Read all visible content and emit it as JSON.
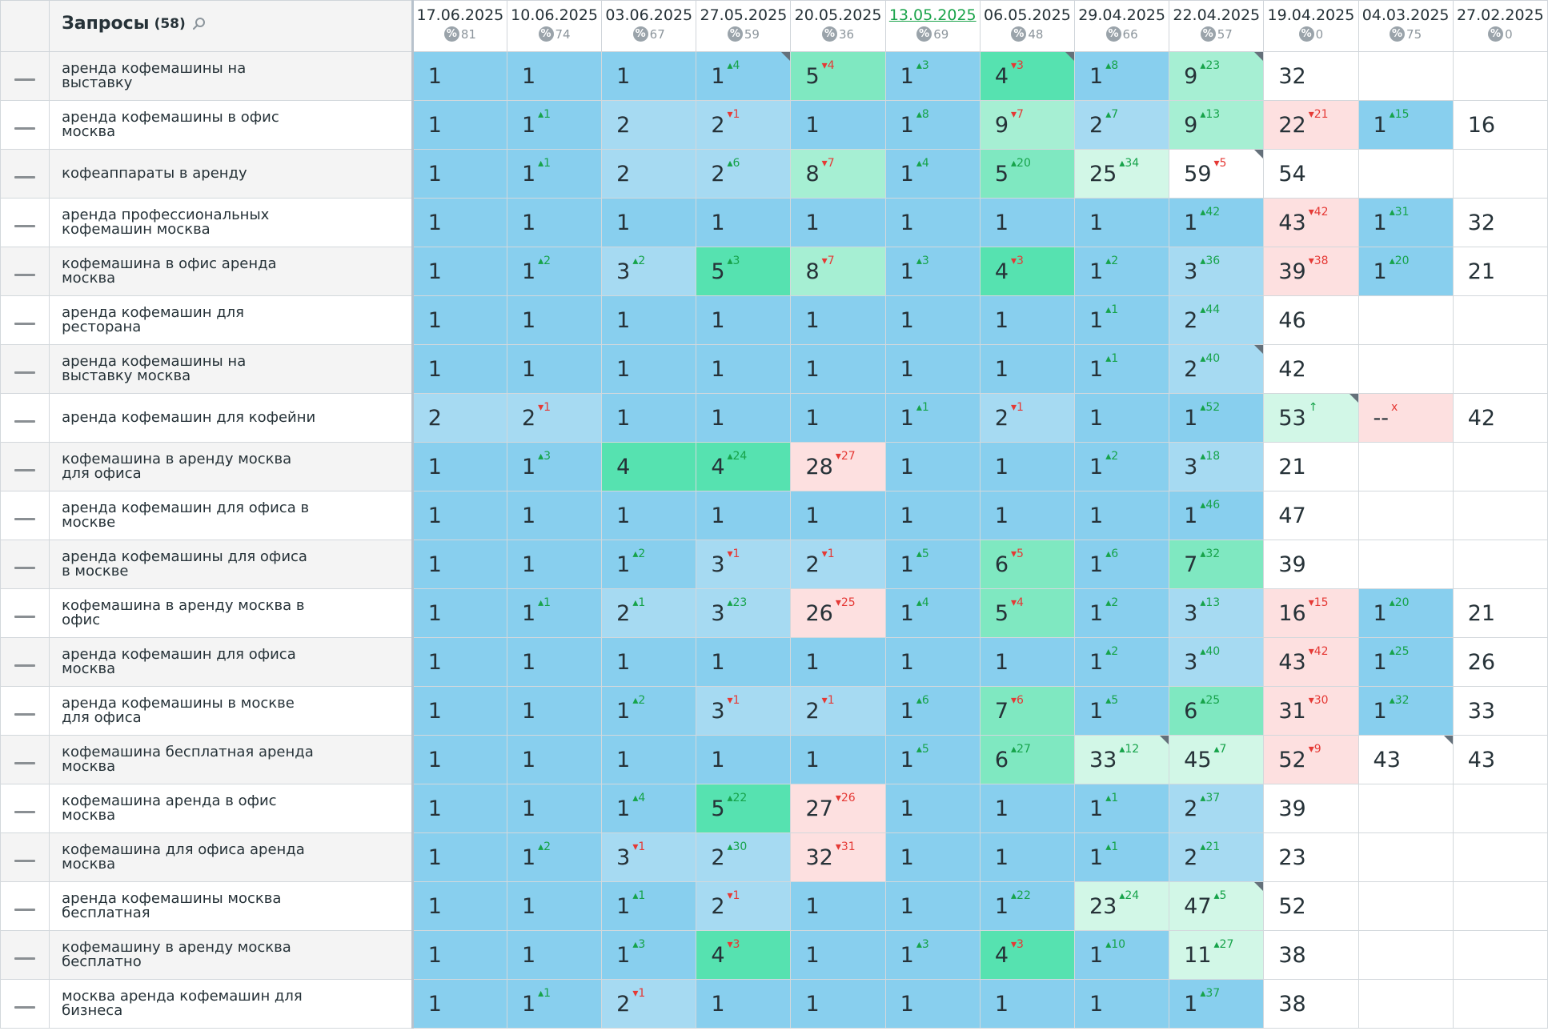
{
  "header": {
    "title": "Запросы",
    "count": "(58)",
    "pct_icon": "%",
    "dates": [
      {
        "date": "17.06.2025",
        "pct": "81"
      },
      {
        "date": "10.06.2025",
        "pct": "74"
      },
      {
        "date": "03.06.2025",
        "pct": "67"
      },
      {
        "date": "27.05.2025",
        "pct": "59"
      },
      {
        "date": "20.05.2025",
        "pct": "36"
      },
      {
        "date": "13.05.2025",
        "pct": "69",
        "link": true
      },
      {
        "date": "06.05.2025",
        "pct": "48"
      },
      {
        "date": "29.04.2025",
        "pct": "66"
      },
      {
        "date": "22.04.2025",
        "pct": "57"
      },
      {
        "date": "19.04.2025",
        "pct": "0"
      },
      {
        "date": "04.03.2025",
        "pct": "75"
      },
      {
        "date": "27.02.2025",
        "pct": "0"
      }
    ]
  },
  "colors": {
    "top1": "#88cfee",
    "top2": "#a6daf2",
    "top3": "#56e2b0",
    "top5": "#7fe8c1",
    "top10": "#a6efd3",
    "top30": "#d2f7e7",
    "bad": "#fde0e0",
    "up": "#16a34a",
    "down": "#e53935",
    "link": "#1aa34a"
  },
  "rows": [
    {
      "q": "аренда кофемашины на выставку",
      "cells": [
        {
          "r": "1"
        },
        {
          "r": "1"
        },
        {
          "r": "1"
        },
        {
          "r": "1",
          "c": "4",
          "d": "up",
          "corner": true
        },
        {
          "r": "5",
          "c": "4",
          "d": "down",
          "bg": "top5"
        },
        {
          "r": "1",
          "c": "3",
          "d": "up"
        },
        {
          "r": "4",
          "c": "3",
          "d": "down",
          "bg": "top3",
          "corner": true
        },
        {
          "r": "1",
          "c": "8",
          "d": "up"
        },
        {
          "r": "9",
          "c": "23",
          "d": "up",
          "bg": "top10",
          "corner": true
        },
        {
          "r": "32",
          "bg": "low"
        },
        {},
        {}
      ]
    },
    {
      "q": "аренда кофемашины в офис москва",
      "cells": [
        {
          "r": "1"
        },
        {
          "r": "1",
          "c": "1",
          "d": "up"
        },
        {
          "r": "2",
          "bg": "top2"
        },
        {
          "r": "2",
          "c": "1",
          "d": "down",
          "bg": "top2"
        },
        {
          "r": "1"
        },
        {
          "r": "1",
          "c": "8",
          "d": "up"
        },
        {
          "r": "9",
          "c": "7",
          "d": "down",
          "bg": "top10"
        },
        {
          "r": "2",
          "c": "7",
          "d": "up",
          "bg": "top2"
        },
        {
          "r": "9",
          "c": "13",
          "d": "up",
          "bg": "top10"
        },
        {
          "r": "22",
          "c": "21",
          "d": "down",
          "bg": "bad"
        },
        {
          "r": "1",
          "c": "15",
          "d": "up"
        },
        {
          "r": "16",
          "bg": "low"
        }
      ]
    },
    {
      "q": "кофеаппараты в аренду",
      "cells": [
        {
          "r": "1"
        },
        {
          "r": "1",
          "c": "1",
          "d": "up"
        },
        {
          "r": "2",
          "bg": "top2"
        },
        {
          "r": "2",
          "c": "6",
          "d": "up",
          "bg": "top2"
        },
        {
          "r": "8",
          "c": "7",
          "d": "down",
          "bg": "top10"
        },
        {
          "r": "1",
          "c": "4",
          "d": "up"
        },
        {
          "r": "5",
          "c": "20",
          "d": "up",
          "bg": "top5"
        },
        {
          "r": "25",
          "c": "34",
          "d": "up",
          "bg": "top30"
        },
        {
          "r": "59",
          "c": "5",
          "d": "down",
          "bg": "low",
          "corner": true
        },
        {
          "r": "54",
          "bg": "low"
        },
        {},
        {}
      ]
    },
    {
      "q": "аренда профессиональных кофемашин москва",
      "cells": [
        {
          "r": "1"
        },
        {
          "r": "1"
        },
        {
          "r": "1"
        },
        {
          "r": "1"
        },
        {
          "r": "1"
        },
        {
          "r": "1"
        },
        {
          "r": "1"
        },
        {
          "r": "1"
        },
        {
          "r": "1",
          "c": "42",
          "d": "up"
        },
        {
          "r": "43",
          "c": "42",
          "d": "down",
          "bg": "bad"
        },
        {
          "r": "1",
          "c": "31",
          "d": "up"
        },
        {
          "r": "32",
          "bg": "low"
        }
      ]
    },
    {
      "q": "кофемашина в офис аренда москва",
      "cells": [
        {
          "r": "1"
        },
        {
          "r": "1",
          "c": "2",
          "d": "up"
        },
        {
          "r": "3",
          "c": "2",
          "d": "up",
          "bg": "top2"
        },
        {
          "r": "5",
          "c": "3",
          "d": "up",
          "bg": "top3"
        },
        {
          "r": "8",
          "c": "7",
          "d": "down",
          "bg": "top10"
        },
        {
          "r": "1",
          "c": "3",
          "d": "up"
        },
        {
          "r": "4",
          "c": "3",
          "d": "down",
          "bg": "top3"
        },
        {
          "r": "1",
          "c": "2",
          "d": "up"
        },
        {
          "r": "3",
          "c": "36",
          "d": "up",
          "bg": "top2"
        },
        {
          "r": "39",
          "c": "38",
          "d": "down",
          "bg": "bad"
        },
        {
          "r": "1",
          "c": "20",
          "d": "up"
        },
        {
          "r": "21",
          "bg": "low"
        }
      ]
    },
    {
      "q": "аренда кофемашин для ресторана",
      "cells": [
        {
          "r": "1"
        },
        {
          "r": "1"
        },
        {
          "r": "1"
        },
        {
          "r": "1"
        },
        {
          "r": "1"
        },
        {
          "r": "1"
        },
        {
          "r": "1"
        },
        {
          "r": "1",
          "c": "1",
          "d": "up"
        },
        {
          "r": "2",
          "c": "44",
          "d": "up",
          "bg": "top2"
        },
        {
          "r": "46",
          "bg": "low"
        },
        {},
        {}
      ]
    },
    {
      "q": "аренда кофемашины на выставку москва",
      "cells": [
        {
          "r": "1"
        },
        {
          "r": "1"
        },
        {
          "r": "1"
        },
        {
          "r": "1"
        },
        {
          "r": "1"
        },
        {
          "r": "1"
        },
        {
          "r": "1"
        },
        {
          "r": "1",
          "c": "1",
          "d": "up"
        },
        {
          "r": "2",
          "c": "40",
          "d": "up",
          "bg": "top2",
          "corner": true
        },
        {
          "r": "42",
          "bg": "low"
        },
        {},
        {}
      ]
    },
    {
      "q": "аренда кофемашин для кофейни",
      "cells": [
        {
          "r": "2",
          "bg": "top2"
        },
        {
          "r": "2",
          "c": "1",
          "d": "down",
          "bg": "top2"
        },
        {
          "r": "1"
        },
        {
          "r": "1"
        },
        {
          "r": "1"
        },
        {
          "r": "1",
          "c": "1",
          "d": "up"
        },
        {
          "r": "2",
          "c": "1",
          "d": "down",
          "bg": "top2"
        },
        {
          "r": "1"
        },
        {
          "r": "1",
          "c": "52",
          "d": "up"
        },
        {
          "r": "53",
          "c": "↑",
          "d": "up",
          "bg": "top30",
          "corner": true
        },
        {
          "r": "--",
          "c": "x",
          "d": "neu",
          "bg": "bad"
        },
        {
          "r": "42",
          "bg": "low"
        }
      ]
    },
    {
      "q": "кофемашина в аренду москва для офиса",
      "cells": [
        {
          "r": "1"
        },
        {
          "r": "1",
          "c": "3",
          "d": "up"
        },
        {
          "r": "4",
          "bg": "top3"
        },
        {
          "r": "4",
          "c": "24",
          "d": "up",
          "bg": "top3"
        },
        {
          "r": "28",
          "c": "27",
          "d": "down",
          "bg": "bad"
        },
        {
          "r": "1"
        },
        {
          "r": "1"
        },
        {
          "r": "1",
          "c": "2",
          "d": "up"
        },
        {
          "r": "3",
          "c": "18",
          "d": "up",
          "bg": "top2"
        },
        {
          "r": "21",
          "bg": "low"
        },
        {},
        {}
      ]
    },
    {
      "q": "аренда кофемашин для офиса в москве",
      "cells": [
        {
          "r": "1"
        },
        {
          "r": "1"
        },
        {
          "r": "1"
        },
        {
          "r": "1"
        },
        {
          "r": "1"
        },
        {
          "r": "1"
        },
        {
          "r": "1"
        },
        {
          "r": "1"
        },
        {
          "r": "1",
          "c": "46",
          "d": "up"
        },
        {
          "r": "47",
          "bg": "low"
        },
        {},
        {}
      ]
    },
    {
      "q": "аренда кофемашины для офиса в москве",
      "cells": [
        {
          "r": "1"
        },
        {
          "r": "1"
        },
        {
          "r": "1",
          "c": "2",
          "d": "up"
        },
        {
          "r": "3",
          "c": "1",
          "d": "down",
          "bg": "top2"
        },
        {
          "r": "2",
          "c": "1",
          "d": "down",
          "bg": "top2"
        },
        {
          "r": "1",
          "c": "5",
          "d": "up"
        },
        {
          "r": "6",
          "c": "5",
          "d": "down",
          "bg": "top5"
        },
        {
          "r": "1",
          "c": "6",
          "d": "up"
        },
        {
          "r": "7",
          "c": "32",
          "d": "up",
          "bg": "top5"
        },
        {
          "r": "39",
          "bg": "low"
        },
        {},
        {}
      ]
    },
    {
      "q": "кофемашина в аренду москва в офис",
      "cells": [
        {
          "r": "1"
        },
        {
          "r": "1",
          "c": "1",
          "d": "up"
        },
        {
          "r": "2",
          "c": "1",
          "d": "up",
          "bg": "top2"
        },
        {
          "r": "3",
          "c": "23",
          "d": "up",
          "bg": "top2"
        },
        {
          "r": "26",
          "c": "25",
          "d": "down",
          "bg": "bad"
        },
        {
          "r": "1",
          "c": "4",
          "d": "up"
        },
        {
          "r": "5",
          "c": "4",
          "d": "down",
          "bg": "top5"
        },
        {
          "r": "1",
          "c": "2",
          "d": "up"
        },
        {
          "r": "3",
          "c": "13",
          "d": "up",
          "bg": "top2"
        },
        {
          "r": "16",
          "c": "15",
          "d": "down",
          "bg": "bad"
        },
        {
          "r": "1",
          "c": "20",
          "d": "up"
        },
        {
          "r": "21",
          "bg": "low"
        }
      ]
    },
    {
      "q": "аренда кофемашин для офиса москва",
      "cells": [
        {
          "r": "1"
        },
        {
          "r": "1"
        },
        {
          "r": "1"
        },
        {
          "r": "1"
        },
        {
          "r": "1"
        },
        {
          "r": "1"
        },
        {
          "r": "1"
        },
        {
          "r": "1",
          "c": "2",
          "d": "up"
        },
        {
          "r": "3",
          "c": "40",
          "d": "up",
          "bg": "top2"
        },
        {
          "r": "43",
          "c": "42",
          "d": "down",
          "bg": "bad"
        },
        {
          "r": "1",
          "c": "25",
          "d": "up"
        },
        {
          "r": "26",
          "bg": "low"
        }
      ]
    },
    {
      "q": "аренда кофемашины в москве для офиса",
      "cells": [
        {
          "r": "1"
        },
        {
          "r": "1"
        },
        {
          "r": "1",
          "c": "2",
          "d": "up"
        },
        {
          "r": "3",
          "c": "1",
          "d": "down",
          "bg": "top2"
        },
        {
          "r": "2",
          "c": "1",
          "d": "down",
          "bg": "top2"
        },
        {
          "r": "1",
          "c": "6",
          "d": "up"
        },
        {
          "r": "7",
          "c": "6",
          "d": "down",
          "bg": "top5"
        },
        {
          "r": "1",
          "c": "5",
          "d": "up"
        },
        {
          "r": "6",
          "c": "25",
          "d": "up",
          "bg": "top5"
        },
        {
          "r": "31",
          "c": "30",
          "d": "down",
          "bg": "bad"
        },
        {
          "r": "1",
          "c": "32",
          "d": "up"
        },
        {
          "r": "33",
          "bg": "low"
        }
      ]
    },
    {
      "q": "кофемашина бесплатная аренда москва",
      "cells": [
        {
          "r": "1"
        },
        {
          "r": "1"
        },
        {
          "r": "1"
        },
        {
          "r": "1"
        },
        {
          "r": "1"
        },
        {
          "r": "1",
          "c": "5",
          "d": "up"
        },
        {
          "r": "6",
          "c": "27",
          "d": "up",
          "bg": "top5"
        },
        {
          "r": "33",
          "c": "12",
          "d": "up",
          "bg": "top30",
          "corner": true
        },
        {
          "r": "45",
          "c": "7",
          "d": "up",
          "bg": "top30"
        },
        {
          "r": "52",
          "c": "9",
          "d": "down",
          "bg": "bad"
        },
        {
          "r": "43",
          "bg": "low",
          "corner": true
        },
        {
          "r": "43",
          "bg": "low"
        }
      ]
    },
    {
      "q": "кофемашина аренда в офис москва",
      "cells": [
        {
          "r": "1"
        },
        {
          "r": "1"
        },
        {
          "r": "1",
          "c": "4",
          "d": "up"
        },
        {
          "r": "5",
          "c": "22",
          "d": "up",
          "bg": "top3"
        },
        {
          "r": "27",
          "c": "26",
          "d": "down",
          "bg": "bad"
        },
        {
          "r": "1"
        },
        {
          "r": "1"
        },
        {
          "r": "1",
          "c": "1",
          "d": "up"
        },
        {
          "r": "2",
          "c": "37",
          "d": "up",
          "bg": "top2"
        },
        {
          "r": "39",
          "bg": "low"
        },
        {},
        {}
      ]
    },
    {
      "q": "кофемашина для офиса аренда москва",
      "cells": [
        {
          "r": "1"
        },
        {
          "r": "1",
          "c": "2",
          "d": "up"
        },
        {
          "r": "3",
          "c": "1",
          "d": "down",
          "bg": "top2"
        },
        {
          "r": "2",
          "c": "30",
          "d": "up",
          "bg": "top2"
        },
        {
          "r": "32",
          "c": "31",
          "d": "down",
          "bg": "bad"
        },
        {
          "r": "1"
        },
        {
          "r": "1"
        },
        {
          "r": "1",
          "c": "1",
          "d": "up"
        },
        {
          "r": "2",
          "c": "21",
          "d": "up",
          "bg": "top2"
        },
        {
          "r": "23",
          "bg": "low"
        },
        {},
        {}
      ]
    },
    {
      "q": "аренда кофемашины москва бесплатная",
      "cells": [
        {
          "r": "1"
        },
        {
          "r": "1"
        },
        {
          "r": "1",
          "c": "1",
          "d": "up"
        },
        {
          "r": "2",
          "c": "1",
          "d": "down",
          "bg": "top2"
        },
        {
          "r": "1"
        },
        {
          "r": "1"
        },
        {
          "r": "1",
          "c": "22",
          "d": "up"
        },
        {
          "r": "23",
          "c": "24",
          "d": "up",
          "bg": "top30"
        },
        {
          "r": "47",
          "c": "5",
          "d": "up",
          "bg": "top30",
          "corner": true
        },
        {
          "r": "52",
          "bg": "low"
        },
        {},
        {}
      ]
    },
    {
      "q": "кофемашину в аренду москва бесплатно",
      "cells": [
        {
          "r": "1"
        },
        {
          "r": "1"
        },
        {
          "r": "1",
          "c": "3",
          "d": "up"
        },
        {
          "r": "4",
          "c": "3",
          "d": "down",
          "bg": "top3"
        },
        {
          "r": "1"
        },
        {
          "r": "1",
          "c": "3",
          "d": "up"
        },
        {
          "r": "4",
          "c": "3",
          "d": "down",
          "bg": "top3"
        },
        {
          "r": "1",
          "c": "10",
          "d": "up"
        },
        {
          "r": "11",
          "c": "27",
          "d": "up",
          "bg": "top30"
        },
        {
          "r": "38",
          "bg": "low"
        },
        {},
        {}
      ]
    },
    {
      "q": "москва аренда кофемашин для бизнеса",
      "cells": [
        {
          "r": "1"
        },
        {
          "r": "1",
          "c": "1",
          "d": "up"
        },
        {
          "r": "2",
          "c": "1",
          "d": "down",
          "bg": "top2"
        },
        {
          "r": "1"
        },
        {
          "r": "1"
        },
        {
          "r": "1"
        },
        {
          "r": "1"
        },
        {
          "r": "1"
        },
        {
          "r": "1",
          "c": "37",
          "d": "up"
        },
        {
          "r": "38",
          "bg": "low"
        },
        {},
        {}
      ]
    }
  ]
}
